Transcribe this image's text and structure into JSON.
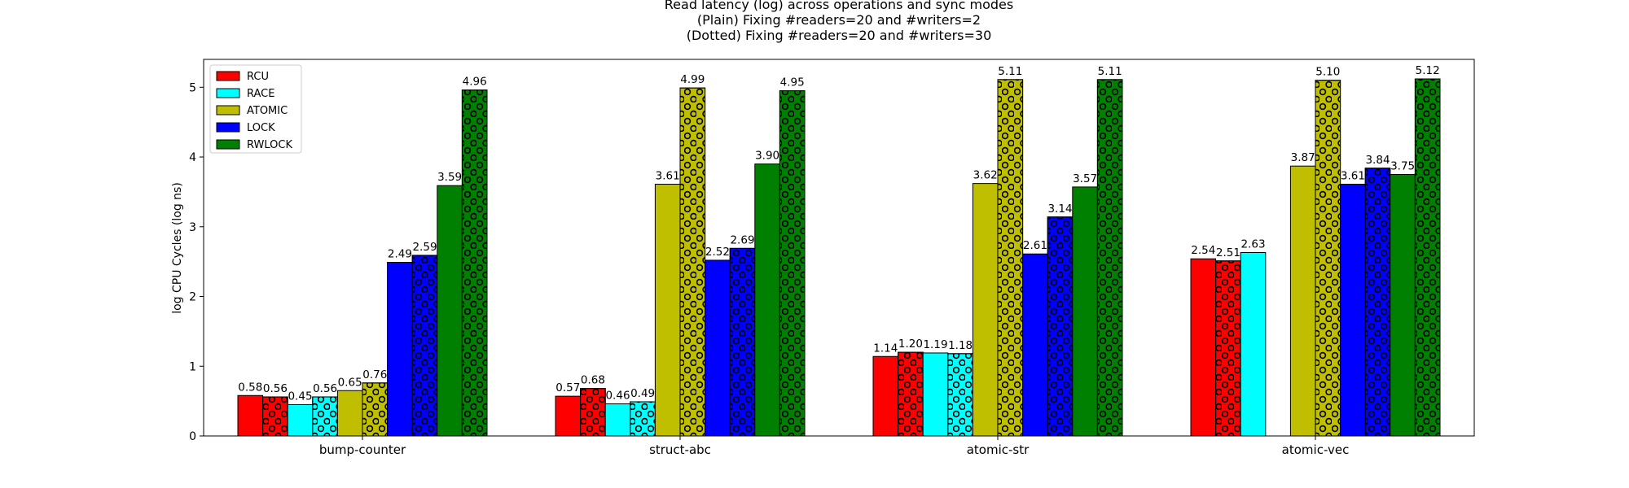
{
  "chart_data": {
    "type": "bar",
    "title": [
      "Read latency (log) across operations and sync modes",
      "(Plain) Fixing #readers=20 and #writers=2",
      "(Dotted) Fixing #readers=20 and #writers=30"
    ],
    "xlabel": "",
    "ylabel": "log CPU Cycles (log ns)",
    "ylim": [
      0,
      5.4
    ],
    "yticks": [
      0,
      1,
      2,
      3,
      4,
      5
    ],
    "categories": [
      "bump-counter",
      "struct-abc",
      "atomic-str",
      "atomic-vec"
    ],
    "legend_position": "top-left",
    "grid": false,
    "series": [
      {
        "name": "RCU",
        "color": "#ff0000",
        "plain": [
          0.58,
          0.57,
          1.14,
          2.54
        ],
        "dotted": [
          0.56,
          0.68,
          1.2,
          2.51
        ]
      },
      {
        "name": "RACE",
        "color": "#00ffff",
        "plain": [
          0.45,
          0.46,
          1.19,
          2.63
        ],
        "dotted": [
          0.56,
          0.49,
          1.18,
          null
        ]
      },
      {
        "name": "ATOMIC",
        "color": "#bfbf00",
        "plain": [
          0.65,
          3.61,
          3.62,
          3.87
        ],
        "dotted": [
          0.76,
          4.99,
          5.11,
          5.1
        ]
      },
      {
        "name": "LOCK",
        "color": "#0000ff",
        "plain": [
          2.49,
          2.52,
          2.61,
          3.61
        ],
        "dotted": [
          2.59,
          2.69,
          3.14,
          3.84
        ]
      },
      {
        "name": "RWLOCK",
        "color": "#008000",
        "plain": [
          3.59,
          3.9,
          3.57,
          3.75
        ],
        "dotted": [
          4.96,
          4.95,
          5.11,
          5.12
        ]
      }
    ]
  }
}
